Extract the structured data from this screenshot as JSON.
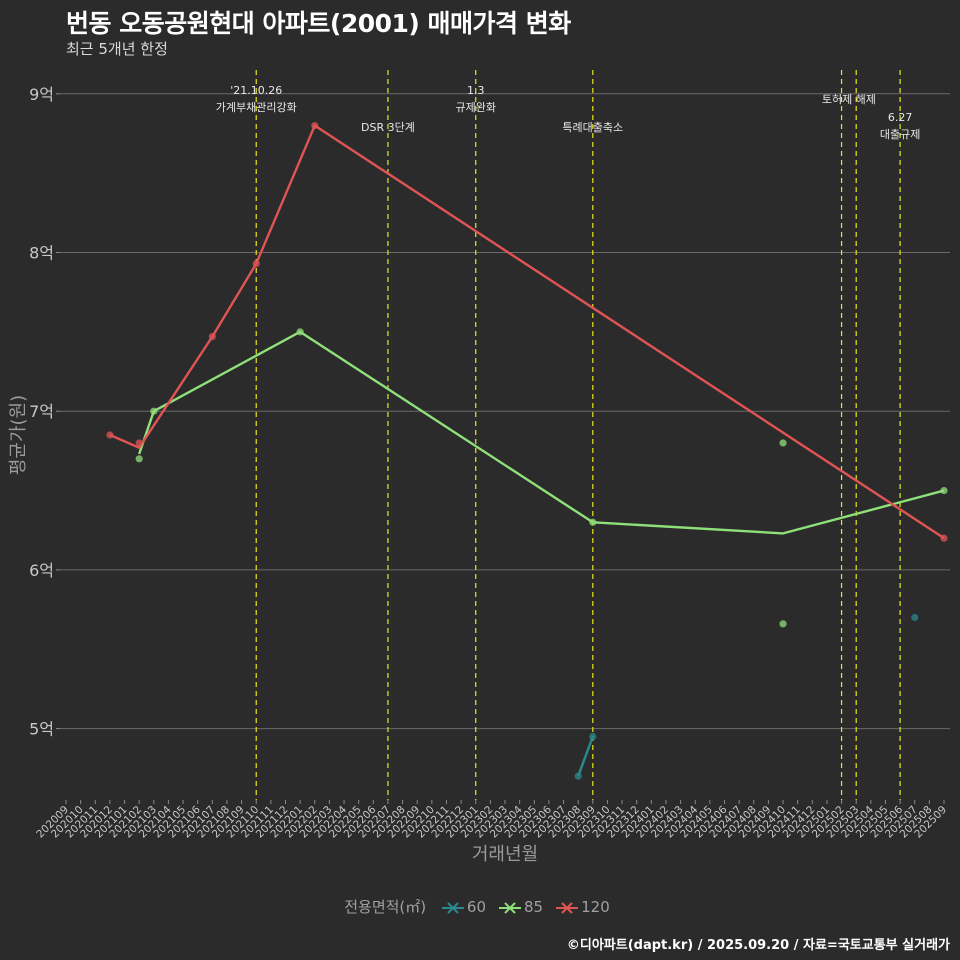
{
  "chart_data": {
    "type": "line",
    "title": "번동 오동공원현대 아파트(2001) 매매가격 변화",
    "subtitle": "최근 5개년 한정",
    "xlabel": "거래년월",
    "ylabel": "평균가(원)",
    "caption": "©디아파트(dapt.kr) / 2025.09.20 / 자료=국토교통부 실거래가",
    "x_categories": [
      "202009",
      "202010",
      "202011",
      "202012",
      "202101",
      "202102",
      "202103",
      "202104",
      "202105",
      "202106",
      "202107",
      "202108",
      "202109",
      "202110",
      "202111",
      "202112",
      "202201",
      "202202",
      "202203",
      "202204",
      "202205",
      "202206",
      "202207",
      "202208",
      "202209",
      "202210",
      "202211",
      "202212",
      "202301",
      "202302",
      "202303",
      "202304",
      "202305",
      "202306",
      "202307",
      "202308",
      "202309",
      "202310",
      "202311",
      "202312",
      "202401",
      "202402",
      "202403",
      "202404",
      "202405",
      "202406",
      "202407",
      "202408",
      "202409",
      "202410",
      "202411",
      "202412",
      "202501",
      "202502",
      "202503",
      "202504",
      "202505",
      "202506",
      "202507",
      "202508",
      "202509"
    ],
    "y_ticks": [
      {
        "value": 5,
        "label": "5억"
      },
      {
        "value": 6,
        "label": "6억"
      },
      {
        "value": 7,
        "label": "7억"
      },
      {
        "value": 8,
        "label": "8억"
      },
      {
        "value": 9,
        "label": "9억"
      }
    ],
    "ylim": [
      4.55,
      9.15
    ],
    "y_unit": "억",
    "legend": {
      "title": "전용면적(㎡)",
      "position": "bottom"
    },
    "series": [
      {
        "name": "60",
        "color": "#2a8a8c",
        "line": [
          {
            "x": "202308",
            "y": 4.7
          },
          {
            "x": "202309",
            "y": 4.95
          }
        ],
        "points": [
          {
            "x": "202308",
            "y": 4.7
          },
          {
            "x": "202309",
            "y": 4.95
          },
          {
            "x": "202507",
            "y": 5.7
          }
        ]
      },
      {
        "name": "85",
        "color": "#90e07a",
        "line": [
          {
            "x": "202102",
            "y": 6.73
          },
          {
            "x": "202103",
            "y": 7.0
          },
          {
            "x": "202201",
            "y": 7.5
          },
          {
            "x": "202309",
            "y": 6.3
          },
          {
            "x": "202410",
            "y": 6.23
          },
          {
            "x": "202509",
            "y": 6.5
          }
        ],
        "points": [
          {
            "x": "202102",
            "y": 6.7
          },
          {
            "x": "202103",
            "y": 7.0
          },
          {
            "x": "202201",
            "y": 7.5
          },
          {
            "x": "202309",
            "y": 6.3
          },
          {
            "x": "202410",
            "y": 6.8
          },
          {
            "x": "202410",
            "y": 5.66
          },
          {
            "x": "202509",
            "y": 6.5
          }
        ]
      },
      {
        "name": "120",
        "color": "#e05454",
        "line": [
          {
            "x": "202012",
            "y": 6.85
          },
          {
            "x": "202102",
            "y": 6.77
          },
          {
            "x": "202107",
            "y": 7.47
          },
          {
            "x": "202110",
            "y": 7.93
          },
          {
            "x": "202202",
            "y": 8.8
          },
          {
            "x": "202509",
            "y": 6.2
          }
        ],
        "points": [
          {
            "x": "202012",
            "y": 6.85
          },
          {
            "x": "202102",
            "y": 6.8
          },
          {
            "x": "202107",
            "y": 7.47
          },
          {
            "x": "202110",
            "y": 7.93
          },
          {
            "x": "202202",
            "y": 8.8
          },
          {
            "x": "202509",
            "y": 6.2
          }
        ]
      }
    ],
    "annotations": [
      {
        "x": "202110",
        "lines": [
          "'21.10.26",
          "가계부채관리강화"
        ],
        "row": 0
      },
      {
        "x": "202207",
        "lines": [
          "DSR 3단계"
        ],
        "row": 2
      },
      {
        "x": "202301",
        "lines": [
          "1.3",
          "규제완화"
        ],
        "row": 0
      },
      {
        "x": "202309",
        "lines": [
          "특례대출축소"
        ],
        "row": 2
      },
      {
        "x": "202502",
        "lines": [],
        "row": 1
      },
      {
        "x": "202503",
        "lines": [
          "토허제 해제"
        ],
        "row": 1,
        "text_x": "202502.5"
      },
      {
        "x": "202506",
        "lines": [
          "6.27",
          "대출규제"
        ],
        "row": 1.5
      }
    ],
    "grid": true,
    "background": "#2b2b2c"
  }
}
